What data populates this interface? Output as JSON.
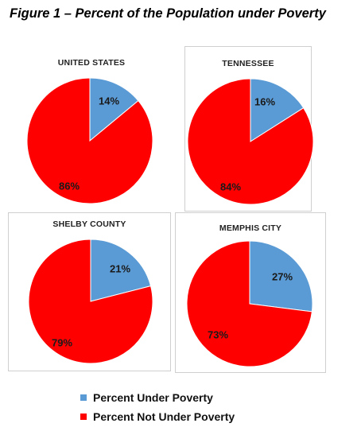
{
  "figure_title": "Figure 1 – Percent of the Population under Poverty",
  "colors": {
    "under": "#5b9bd5",
    "not_under": "#ff0000"
  },
  "legend": [
    {
      "label": "Percent Under Poverty",
      "color": "#5b9bd5"
    },
    {
      "label": "Percent Not Under Poverty",
      "color": "#ff0000"
    }
  ],
  "chart_data": [
    {
      "type": "pie",
      "title": "UNITED STATES",
      "slices": [
        {
          "label": "Percent Under Poverty",
          "value": 14,
          "display": "14%"
        },
        {
          "label": "Percent Not Under Poverty",
          "value": 86,
          "display": "86%"
        }
      ]
    },
    {
      "type": "pie",
      "title": "TENNESSEE",
      "slices": [
        {
          "label": "Percent Under Poverty",
          "value": 16,
          "display": "16%"
        },
        {
          "label": "Percent Not Under Poverty",
          "value": 84,
          "display": "84%"
        }
      ]
    },
    {
      "type": "pie",
      "title": "SHELBY COUNTY",
      "slices": [
        {
          "label": "Percent Under Poverty",
          "value": 21,
          "display": "21%"
        },
        {
          "label": "Percent Not Under Poverty",
          "value": 79,
          "display": "79%"
        }
      ]
    },
    {
      "type": "pie",
      "title": "MEMPHIS CITY",
      "slices": [
        {
          "label": "Percent Under Poverty",
          "value": 27,
          "display": "27%"
        },
        {
          "label": "Percent Not Under Poverty",
          "value": 73,
          "display": "73%"
        }
      ]
    }
  ]
}
